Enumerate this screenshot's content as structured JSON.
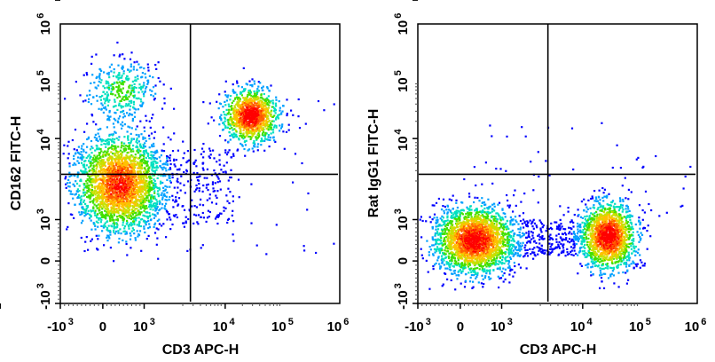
{
  "chart_data": [
    {
      "type": "scatter",
      "subtype": "flow-cytometry-density-dot-plot",
      "xlabel": "CD3 APC-H",
      "ylabel": "CD162 FITC-H",
      "x_scale": "biexponential",
      "y_scale": "biexponential",
      "xlim": [
        -1000,
        1000000
      ],
      "ylim": [
        -1000,
        1000000
      ],
      "x_ticks": [
        {
          "base": "-10",
          "exp": "3"
        },
        {
          "base": "0",
          "exp": ""
        },
        {
          "base": "10",
          "exp": "3"
        },
        {
          "base": "10",
          "exp": "4"
        },
        {
          "base": "10",
          "exp": "5"
        },
        {
          "base": "10",
          "exp": "6"
        }
      ],
      "y_ticks": [
        {
          "base": "-10",
          "exp": "3"
        },
        {
          "base": "0",
          "exp": ""
        },
        {
          "base": "10",
          "exp": "3"
        },
        {
          "base": "10",
          "exp": "4"
        },
        {
          "base": "10",
          "exp": "5"
        },
        {
          "base": "10",
          "exp": "6"
        }
      ],
      "quadrant_gate": {
        "x": 2700,
        "y": 2600
      },
      "populations": [
        {
          "x": 400,
          "y": 1800,
          "events": 2500
        },
        {
          "x": 450,
          "y": 70000,
          "events": 350
        },
        {
          "x": 28000,
          "y": 25000,
          "events": 1100
        }
      ],
      "grid": false,
      "legend": "none"
    },
    {
      "type": "scatter",
      "subtype": "flow-cytometry-density-dot-plot",
      "xlabel": "CD3 APC-H",
      "ylabel": "Rat IgG1 FITC-H",
      "x_scale": "biexponential",
      "y_scale": "biexponential",
      "xlim": [
        -1000,
        1000000
      ],
      "ylim": [
        -1000,
        1000000
      ],
      "x_ticks": [
        {
          "base": "-10",
          "exp": "3"
        },
        {
          "base": "0",
          "exp": ""
        },
        {
          "base": "10",
          "exp": "3"
        },
        {
          "base": "10",
          "exp": "4"
        },
        {
          "base": "10",
          "exp": "5"
        },
        {
          "base": "10",
          "exp": "6"
        }
      ],
      "y_ticks": [
        {
          "base": "-10",
          "exp": "3"
        },
        {
          "base": "0",
          "exp": ""
        },
        {
          "base": "10",
          "exp": "3"
        },
        {
          "base": "10",
          "exp": "4"
        },
        {
          "base": "10",
          "exp": "5"
        },
        {
          "base": "10",
          "exp": "6"
        }
      ],
      "quadrant_gate": {
        "x": 2700,
        "y": 2600
      },
      "populations": [
        {
          "x": 350,
          "y": 500,
          "events": 2200
        },
        {
          "x": 28000,
          "y": 600,
          "events": 1600
        }
      ],
      "grid": false,
      "legend": "none"
    }
  ],
  "colors": {
    "density_scale": [
      "#0000ff",
      "#00a0ff",
      "#00e0c0",
      "#40e000",
      "#c8e000",
      "#ffc000",
      "#ff6000",
      "#ff0000"
    ],
    "axis": "#000000"
  }
}
